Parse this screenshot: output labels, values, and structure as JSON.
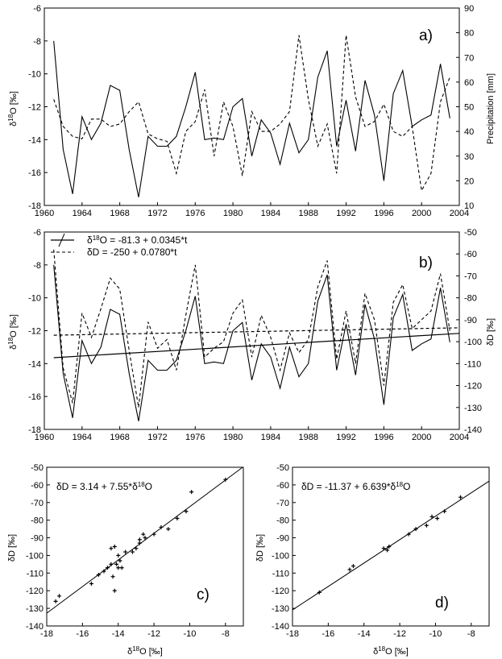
{
  "chart_data": [
    {
      "panel": "a)",
      "type": "line",
      "x_ticks": [
        "1960",
        "1964",
        "1968",
        "1972",
        "1976",
        "1980",
        "1984",
        "1988",
        "1992",
        "1996",
        "2000",
        "2004"
      ],
      "y_ticks": [
        "-6",
        "-8",
        "-10",
        "-12",
        "-14",
        "-16",
        "-18"
      ],
      "y2_ticks": [
        "90",
        "80",
        "70",
        "60",
        "50",
        "40",
        "30",
        "20",
        "10"
      ],
      "ylabel": "δ18O [‰]",
      "y2label": "Precipitation [mm]",
      "xlim": [
        1960,
        2004
      ],
      "ylim": [
        -18,
        -6
      ],
      "y2lim": [
        10,
        90
      ],
      "x": [
        1961,
        1962,
        1963,
        1964,
        1965,
        1966,
        1967,
        1968,
        1969,
        1970,
        1971,
        1972,
        1973,
        1974,
        1975,
        1976,
        1977,
        1978,
        1979,
        1980,
        1981,
        1982,
        1983,
        1984,
        1985,
        1986,
        1987,
        1988,
        1989,
        1990,
        1991,
        1992,
        1993,
        1994,
        1995,
        1996,
        1997,
        1998,
        1999,
        2000,
        2001,
        2002,
        2003
      ],
      "series": [
        {
          "style": "solid",
          "axis": "left",
          "values": [
            -8.0,
            -14.6,
            -17.3,
            -12.6,
            -14.0,
            -13.0,
            -10.7,
            -11.0,
            -14.6,
            -17.5,
            -13.8,
            -14.4,
            -14.4,
            -13.8,
            -12.0,
            -9.9,
            -14.0,
            -13.9,
            -14.0,
            -12.0,
            -11.5,
            -15.0,
            -12.8,
            -13.6,
            -15.5,
            -13.0,
            -14.8,
            -14.0,
            -10.2,
            -8.6,
            -14.4,
            -11.6,
            -14.7,
            -10.4,
            -12.5,
            -16.5,
            -11.2,
            -9.8,
            -13.2,
            -12.8,
            -12.5,
            -9.4,
            -12.7
          ]
        },
        {
          "style": "dashed",
          "axis": "right",
          "values": [
            53,
            42,
            38,
            37,
            45,
            45,
            42,
            43,
            48,
            52,
            39,
            37,
            36,
            23,
            40,
            44,
            57,
            30,
            52,
            42,
            22,
            48,
            40,
            40,
            43,
            48,
            79,
            53,
            34,
            43,
            23,
            79,
            54,
            42,
            44,
            51,
            40,
            38,
            42,
            16,
            23,
            52,
            62
          ]
        }
      ]
    },
    {
      "panel": "b)",
      "type": "line",
      "x_ticks": [
        "1960",
        "1964",
        "1968",
        "1972",
        "1976",
        "1980",
        "1984",
        "1988",
        "1992",
        "1996",
        "2000",
        "2004"
      ],
      "y_ticks": [
        "-6",
        "-8",
        "-10",
        "-12",
        "-14",
        "-16",
        "-18"
      ],
      "y2_ticks": [
        "-50",
        "-60",
        "-70",
        "-80",
        "-90",
        "-100",
        "-110",
        "-120",
        "-130",
        "-140"
      ],
      "ylabel": "δ18O [‰]",
      "y2label": "δD [‰]",
      "xlim": [
        1960,
        2004
      ],
      "ylim": [
        -18,
        -6
      ],
      "y2lim": [
        -140,
        -50
      ],
      "legend": [
        "δ18O = -81.3 + 0.0345*t",
        "δD = -250 + 0.0780*t"
      ],
      "x": [
        1961,
        1962,
        1963,
        1964,
        1965,
        1966,
        1967,
        1968,
        1969,
        1970,
        1971,
        1972,
        1973,
        1974,
        1975,
        1976,
        1977,
        1978,
        1979,
        1980,
        1981,
        1982,
        1983,
        1984,
        1985,
        1986,
        1987,
        1988,
        1989,
        1990,
        1991,
        1992,
        1993,
        1994,
        1995,
        1996,
        1997,
        1998,
        1999,
        2000,
        2001,
        2002,
        2003
      ],
      "series": [
        {
          "style": "solid",
          "axis": "left",
          "values": [
            -8.0,
            -14.6,
            -17.3,
            -12.6,
            -14.0,
            -13.0,
            -10.7,
            -11.0,
            -14.6,
            -17.5,
            -13.8,
            -14.4,
            -14.4,
            -13.8,
            -12.0,
            -9.9,
            -14.0,
            -13.9,
            -14.0,
            -12.0,
            -11.5,
            -15.0,
            -12.8,
            -13.6,
            -15.5,
            -13.0,
            -14.8,
            -14.0,
            -10.2,
            -8.6,
            -14.4,
            -11.6,
            -14.7,
            -10.4,
            -12.5,
            -16.5,
            -11.2,
            -9.8,
            -13.2,
            -12.8,
            -12.5,
            -9.4,
            -12.7
          ]
        },
        {
          "style": "dashed",
          "axis": "right",
          "values": [
            -58,
            -112,
            -128,
            -87,
            -98,
            -85,
            -71,
            -76,
            -104,
            -130,
            -91,
            -103,
            -99,
            -113,
            -88,
            -65,
            -107,
            -103,
            -100,
            -87,
            -81,
            -107,
            -88,
            -98,
            -113,
            -96,
            -105,
            -99,
            -75,
            -63,
            -108,
            -86,
            -110,
            -78,
            -90,
            -120,
            -82,
            -74,
            -94,
            -90,
            -86,
            -69,
            -95
          ]
        },
        {
          "style": "solid",
          "axis": "left",
          "kind": "trend",
          "x": [
            1961,
            2004
          ],
          "values": [
            -13.64,
            -12.16
          ]
        },
        {
          "style": "dashed",
          "axis": "right",
          "kind": "trend",
          "x": [
            1961,
            2004
          ],
          "values": [
            -97.04,
            -93.69
          ]
        }
      ]
    },
    {
      "panel": "c)",
      "type": "scatter",
      "equation": "δD = 3.14 + 7.55*δ18O",
      "xlabel": "δ18O [‰]",
      "ylabel": "δD [‰]",
      "x_ticks": [
        "-18",
        "-16",
        "-14",
        "-12",
        "-10",
        "-8"
      ],
      "y_ticks": [
        "-50",
        "-60",
        "-70",
        "-80",
        "-90",
        "-100",
        "-110",
        "-120",
        "-130",
        "-140"
      ],
      "xlim": [
        -18,
        -7
      ],
      "ylim": [
        -140,
        -50
      ],
      "fit": {
        "intercept": 3.14,
        "slope": 7.55
      },
      "x": [
        -17.5,
        -17.3,
        -15.5,
        -15.1,
        -14.8,
        -14.6,
        -14.4,
        -14.4,
        -14.3,
        -14.2,
        -14.2,
        -14.1,
        -14.0,
        -14.0,
        -13.9,
        -13.8,
        -13.6,
        -13.2,
        -13.0,
        -12.8,
        -12.8,
        -12.6,
        -12.5,
        -12.0,
        -11.6,
        -11.2,
        -10.7,
        -10.2,
        -9.9,
        -8.0
      ],
      "y": [
        -126,
        -123,
        -116,
        -111,
        -109,
        -107,
        -105,
        -96,
        -112,
        -120,
        -95,
        -105,
        -100,
        -107,
        -103,
        -107,
        -98,
        -98,
        -96,
        -93,
        -91,
        -88,
        -90,
        -88,
        -84,
        -85,
        -79,
        -75,
        -64,
        -57
      ]
    },
    {
      "panel": "d)",
      "type": "scatter",
      "equation": "δD = -11.37 + 6.639*δ18O",
      "xlabel": "δ18O [‰]",
      "ylabel": "δD [‰]",
      "x_ticks": [
        "-18",
        "-16",
        "-14",
        "-12",
        "-10",
        "-8"
      ],
      "y_ticks": [
        "-50",
        "-60",
        "-70",
        "-80",
        "-90",
        "-100",
        "-110",
        "-120",
        "-130",
        "-140"
      ],
      "xlim": [
        -18,
        -7
      ],
      "ylim": [
        -140,
        -50
      ],
      "fit": {
        "intercept": -11.37,
        "slope": 6.639
      },
      "x": [
        -16.5,
        -14.8,
        -14.6,
        -12.9,
        -12.7,
        -12.6,
        -11.5,
        -11.1,
        -10.5,
        -10.2,
        -9.9,
        -9.5,
        -8.6
      ],
      "y": [
        -121,
        -108,
        -106,
        -96,
        -97,
        -95,
        -88,
        -85,
        -83,
        -78,
        -79,
        -75,
        -67
      ]
    }
  ]
}
